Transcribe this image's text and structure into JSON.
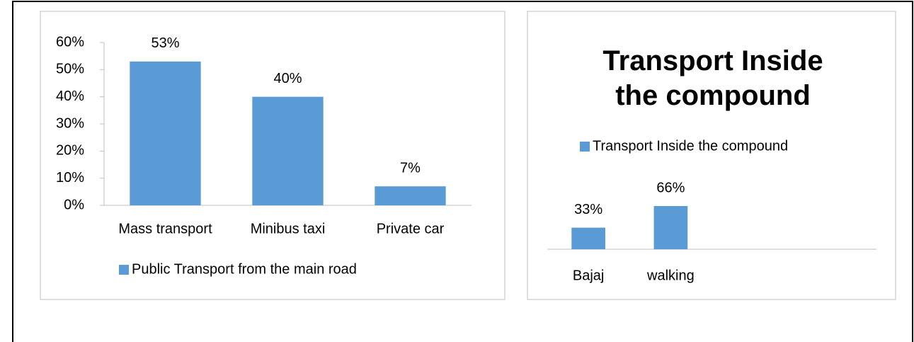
{
  "chart_data": [
    {
      "type": "bar",
      "categories": [
        "Mass transport",
        "Minibus taxi",
        "Private car"
      ],
      "series": [
        {
          "name": "Public Transport from the main road",
          "color": "#5b9bd5",
          "values": [
            53,
            40,
            7
          ],
          "value_labels": [
            "53%",
            "40%",
            "7%"
          ]
        }
      ],
      "ylim": [
        0,
        60
      ],
      "yticks": [
        {
          "value": 0,
          "label": "0%"
        },
        {
          "value": 10,
          "label": "10%"
        },
        {
          "value": 20,
          "label": "20%"
        },
        {
          "value": 30,
          "label": "30%"
        },
        {
          "value": 40,
          "label": "40%"
        },
        {
          "value": 50,
          "label": "50%"
        },
        {
          "value": 60,
          "label": "60%"
        }
      ],
      "legend": "bottom"
    },
    {
      "type": "bar",
      "title": "Transport Inside the compound",
      "categories": [
        "Bajaj",
        "walking",
        null,
        null
      ],
      "series": [
        {
          "name": "Transport Inside the compound",
          "color": "#5b9bd5",
          "values": [
            33,
            66,
            null,
            null
          ],
          "value_labels": [
            "33%",
            "66%",
            null,
            null
          ]
        }
      ],
      "legend": "top"
    }
  ]
}
